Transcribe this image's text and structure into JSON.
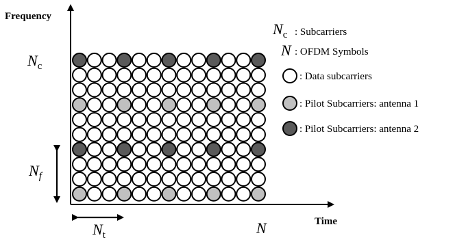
{
  "axes": {
    "y_title": "Frequency",
    "x_title": "Time"
  },
  "labels": {
    "nc_main": "N",
    "nc_sub": "c",
    "n_main": "N",
    "nf_main": "N",
    "nf_sub": "f",
    "nt_main": "N",
    "nt_sub": "t"
  },
  "grid": {
    "rows": 10,
    "cols": 13,
    "pilot_rows_top": [
      0,
      6
    ],
    "pilot_rows_gray": [
      3,
      9
    ],
    "pilot_cols": [
      0,
      3,
      6,
      9,
      12
    ]
  },
  "legend": [
    {
      "symbol_main": "N",
      "symbol_sub": "c",
      "text": ": Subcarriers"
    },
    {
      "symbol_main": "N",
      "symbol_sub": "",
      "text": ":  OFDM Symbols"
    },
    {
      "swatch": "white",
      "text": ": Data subcarriers"
    },
    {
      "swatch": "light",
      "text": ": Pilot Subcarriers: antenna 1"
    },
    {
      "swatch": "dark",
      "text": ": Pilot Subcarriers: antenna 2"
    }
  ],
  "colors": {
    "data": "#ffffff",
    "pilot_antenna_1": "#c0c0c0",
    "pilot_antenna_2": "#5a5a5a",
    "stroke": "#000000"
  }
}
